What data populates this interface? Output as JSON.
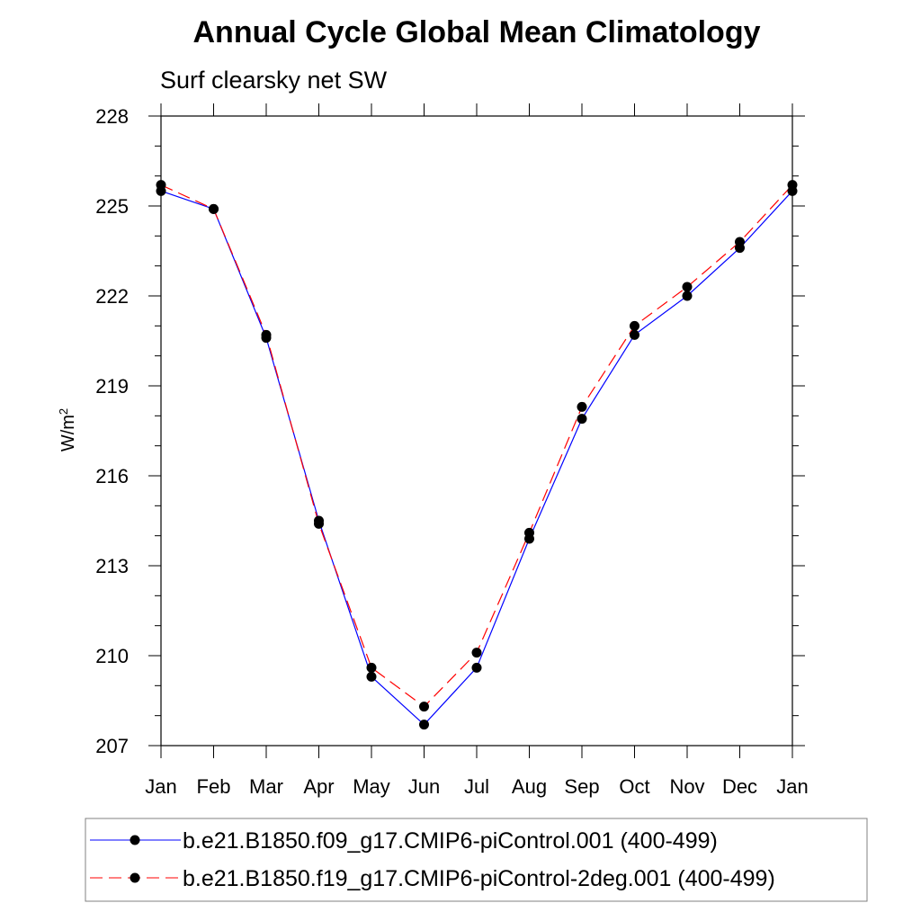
{
  "chart_data": {
    "type": "line",
    "title": "Annual Cycle Global Mean Climatology",
    "subtitle": "Surf clearsky net SW",
    "ylabel_base": "W/m",
    "ylabel_sup": "2",
    "categories": [
      "Jan",
      "Feb",
      "Mar",
      "Apr",
      "May",
      "Jun",
      "Jul",
      "Aug",
      "Sep",
      "Oct",
      "Nov",
      "Dec",
      "Jan"
    ],
    "ylim": [
      207,
      228
    ],
    "yticks": [
      "207",
      "210",
      "213",
      "216",
      "219",
      "222",
      "225",
      "228"
    ],
    "grid": false,
    "legend_position": "bottom",
    "series": [
      {
        "name": "b.e21.B1850.f09_g17.CMIP6-piControl.001 (400-499)",
        "color": "#0000ff",
        "dash": "solid",
        "values": [
          225.5,
          224.9,
          220.6,
          214.5,
          209.3,
          207.7,
          209.6,
          213.9,
          217.9,
          220.7,
          222.0,
          223.6,
          225.5
        ]
      },
      {
        "name": "b.e21.B1850.f19_g17.CMIP6-piControl-2deg.001 (400-499)",
        "color": "#ff0000",
        "dash": "dashed",
        "values": [
          225.7,
          224.9,
          220.7,
          214.4,
          209.6,
          208.3,
          210.1,
          214.1,
          218.3,
          221.0,
          222.3,
          223.8,
          225.7
        ]
      }
    ]
  }
}
